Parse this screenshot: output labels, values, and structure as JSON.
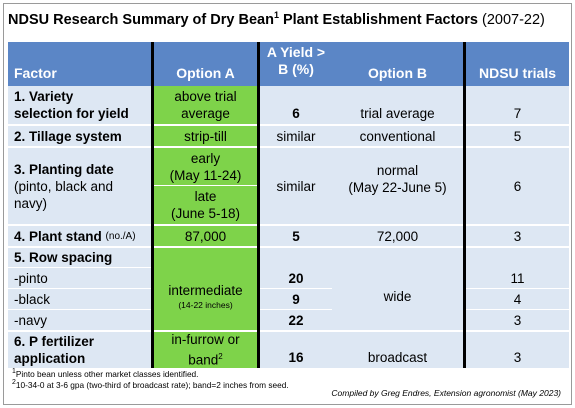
{
  "title": {
    "main": "NDSU Research Summary of Dry Bean",
    "sup": "1",
    "rest": " Plant Establishment Factors",
    "years": "(2007-22)"
  },
  "header": {
    "factor": "Factor",
    "option_a": "Option A",
    "yield_line1": "A Yield >",
    "yield_line2": "B (%)",
    "option_b": "Option B",
    "trials": "NDSU  trials"
  },
  "rows": {
    "variety": {
      "factor_line1": "1. Variety",
      "factor_line2": "selection for yield",
      "a_line1": "above trial",
      "a_line2": "average",
      "yield": "6",
      "b": "trial average",
      "trials": "7"
    },
    "tillage": {
      "factor": "2. Tillage system",
      "a": "strip-till",
      "yield": "similar",
      "b": "conventional",
      "trials": "5"
    },
    "planting": {
      "factor_bold": "3. Planting date",
      "factor_line2": "(pinto, black and",
      "factor_line3": "navy)",
      "a1_line1": "early",
      "a1_line2": "(May 11-24)",
      "a2_line1": "late",
      "a2_line2": "(June 5-18)",
      "yield": "similar",
      "b_line1": "normal",
      "b_line2": "(May 22-June 5)",
      "trials": "6"
    },
    "stand": {
      "factor_bold": "4. Plant stand",
      "factor_unit": "(no./A)",
      "a": "87,000",
      "yield": "5",
      "b": "72,000",
      "trials": "3"
    },
    "spacing": {
      "factor": "5. Row spacing",
      "a_main": "intermediate",
      "a_sub": "(14-22 inches)",
      "b": "wide",
      "sub": [
        {
          "label": "-pinto",
          "yield": "20",
          "trials": "11"
        },
        {
          "label": "-black",
          "yield": "9",
          "trials": "4"
        },
        {
          "label": "-navy",
          "yield": "22",
          "trials": "3"
        }
      ]
    },
    "fertilizer": {
      "factor_line1": "6. P fertilizer",
      "factor_line2": "application",
      "a_line1": "in-furrow or",
      "a_line2": "band",
      "a_sup": "2",
      "yield": "16",
      "b": "broadcast",
      "trials": "3"
    }
  },
  "footnotes": {
    "note1_sup": "1",
    "note1": "Pinto bean unless other market classes identified.",
    "note2_sup": "2",
    "note2": "10-34-0 at 3-6 gpa (two-third of broadcast rate); band=2 inches from seed."
  },
  "credit": "Compiled by Greg Endres, Extension agronomist (May 2023)",
  "colors": {
    "header": "#5b86c6",
    "body": "#dde7f3",
    "option_a": "#7ed34a",
    "divider": "#000000"
  }
}
